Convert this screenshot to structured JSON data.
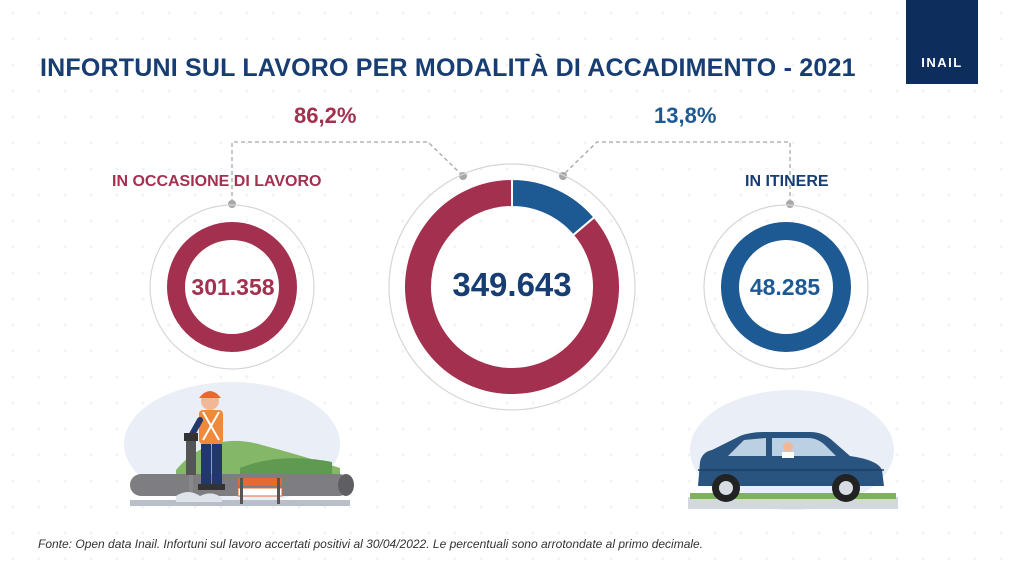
{
  "header": {
    "title": "INFORTUNI SUL LAVORO PER MODALITÀ DI ACCADIMENTO - 2021",
    "logo_text": "INAIL"
  },
  "chart_data": {
    "type": "pie",
    "title": "INFORTUNI SUL LAVORO PER MODALITÀ DI ACCADIMENTO - 2021",
    "total": 349643,
    "total_label": "349.643",
    "slices": [
      {
        "label": "IN OCCASIONE DI LAVORO",
        "value": 301358,
        "value_label": "301.358",
        "percent": 86.2,
        "percent_label": "86,2%",
        "color": "#a4304f"
      },
      {
        "label": "IN ITINERE",
        "value": 48285,
        "value_label": "48.285",
        "percent": 13.8,
        "percent_label": "13,8%",
        "color": "#1d5a94"
      }
    ],
    "colors": {
      "lavoro": "#a4304f",
      "itinere": "#1d5a94",
      "title": "#173d73"
    }
  },
  "illustrations": {
    "left": "construction-worker-jackhammer",
    "right": "car-with-driver"
  },
  "footer": {
    "source": "Fonte: Open data Inail. Infortuni sul lavoro accertati positivi al 30/04/2022.  Le percentuali sono arrotondate al primo decimale."
  }
}
